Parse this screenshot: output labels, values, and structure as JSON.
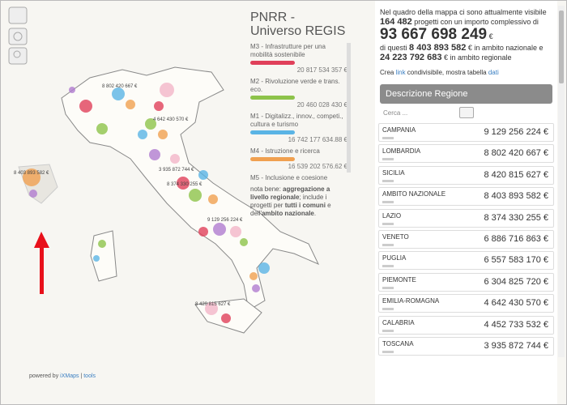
{
  "map": {
    "bubble_labels": [
      "8 802 420 667 €",
      "4 642 430 570 €",
      "3 935 872 744 €",
      "8 374 330 255 €",
      "9 129 256 224 €",
      "8 420 815 627 €",
      "8 403 893 582 €"
    ]
  },
  "footer": {
    "powered_by": "powered by",
    "brand": "iXMaps",
    "separator": "|",
    "tools": "tools"
  },
  "legend": {
    "title": "PNRR - Universo REGIS",
    "items": [
      {
        "label": "M3 - Infrastrutture per una mobilità sostenibile",
        "value": "20 817 534 357 €",
        "color": "#e0405a"
      },
      {
        "label": "M2 - Rivoluzione verde e trans. eco.",
        "value": "20 460 028 430 €",
        "color": "#8dc34a"
      },
      {
        "label": "M1 - Digitalizz., innov., competi., cultura e turismo",
        "value": "16 742 177 634.88 €",
        "color": "#5ab4e5"
      },
      {
        "label": "M4 - Istruzione e ricerca",
        "value": "16 539 202 576.62 €",
        "color": "#f0a050"
      },
      {
        "label": "M5 - Inclusione e coesione"
      }
    ],
    "note": [
      "nota bene: ",
      "aggregazione a livello regionale",
      "; include i progetti per ",
      "tutti i comuni",
      " e dell'",
      "ambito nazionale",
      "."
    ]
  },
  "summary": {
    "intro": "Nel quadro della mappa ci sono attualmente visibile",
    "projects": "164 482",
    "projects_text": " progetti con un importo complessivo di",
    "total": "93 667 698 249",
    "currency": "€",
    "of_these": "di questi ",
    "national": "8 403 893 582",
    "national_text": " € in ambito nazionale e",
    "regional": "24 223 792 683",
    "regional_text": " € in ambito regionale",
    "create": "Crea ",
    "link": "link",
    "share_text": " condivisibile, mostra tabella ",
    "data": "dati"
  },
  "table": {
    "title": "Descrizione Regione",
    "search_placeholder": "Cerca ...",
    "rows": [
      [
        "CAMPANIA",
        "9 129 256 224 €"
      ],
      [
        "LOMBARDIA",
        "8 802 420 667 €"
      ],
      [
        "SICILIA",
        "8 420 815 627 €"
      ],
      [
        "AMBITO NAZIONALE",
        "8 403 893 582 €"
      ],
      [
        "LAZIO",
        "8 374 330 255 €"
      ],
      [
        "VENETO",
        "6 886 716 863 €"
      ],
      [
        "PUGLIA",
        "6 557 583 170 €"
      ],
      [
        "PIEMONTE",
        "6 304 825 720 €"
      ],
      [
        "EMILIA-ROMAGNA",
        "4 642 430 570 €"
      ],
      [
        "CALABRIA",
        "4 452 733 532 €"
      ],
      [
        "TOSCANA",
        "3 935 872 744 €"
      ]
    ]
  }
}
